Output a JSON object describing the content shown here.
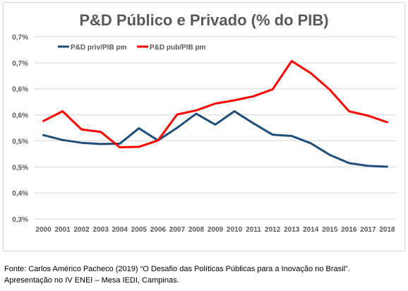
{
  "chart_data": {
    "type": "line",
    "title": "P&D Público e Privado (% do PIB)",
    "xlabel": "",
    "ylabel": "",
    "categories": [
      "2000",
      "2001",
      "2002",
      "2003",
      "2004",
      "2005",
      "2006",
      "2007",
      "2008",
      "2009",
      "2010",
      "2011",
      "2012",
      "2013",
      "2014",
      "2015",
      "2016",
      "2017",
      "2018"
    ],
    "ytick_labels": [
      "0,3%",
      "0,4%",
      "0,5%",
      "0,5%",
      "0,6%",
      "0,6%",
      "0,7%",
      "0,7%"
    ],
    "ylim": [
      0.3,
      0.75
    ],
    "grid": true,
    "legend_position": "top-left",
    "series": [
      {
        "name": "P&D priv/PIB pm",
        "color": "#1f4e79",
        "values": [
          0.507,
          0.495,
          0.488,
          0.485,
          0.486,
          0.524,
          0.494,
          0.525,
          0.56,
          0.533,
          0.566,
          0.536,
          0.508,
          0.505,
          0.487,
          0.458,
          0.438,
          0.431,
          0.429
        ]
      },
      {
        "name": "P&D pub/PIB pm",
        "color": "#ff0000",
        "values": [
          0.542,
          0.566,
          0.521,
          0.515,
          0.477,
          0.478,
          0.494,
          0.558,
          0.568,
          0.585,
          0.593,
          0.603,
          0.62,
          0.69,
          0.66,
          0.619,
          0.566,
          0.555,
          0.539
        ]
      }
    ]
  },
  "caption": {
    "line1": "Fonte: Carlos Américo Pacheco (2019) “O Desafio das Políticas Públicas para a Inovação no Brasil”.",
    "line2": "Apresentação no IV ENEI – Mesa IEDI, Campinas."
  }
}
